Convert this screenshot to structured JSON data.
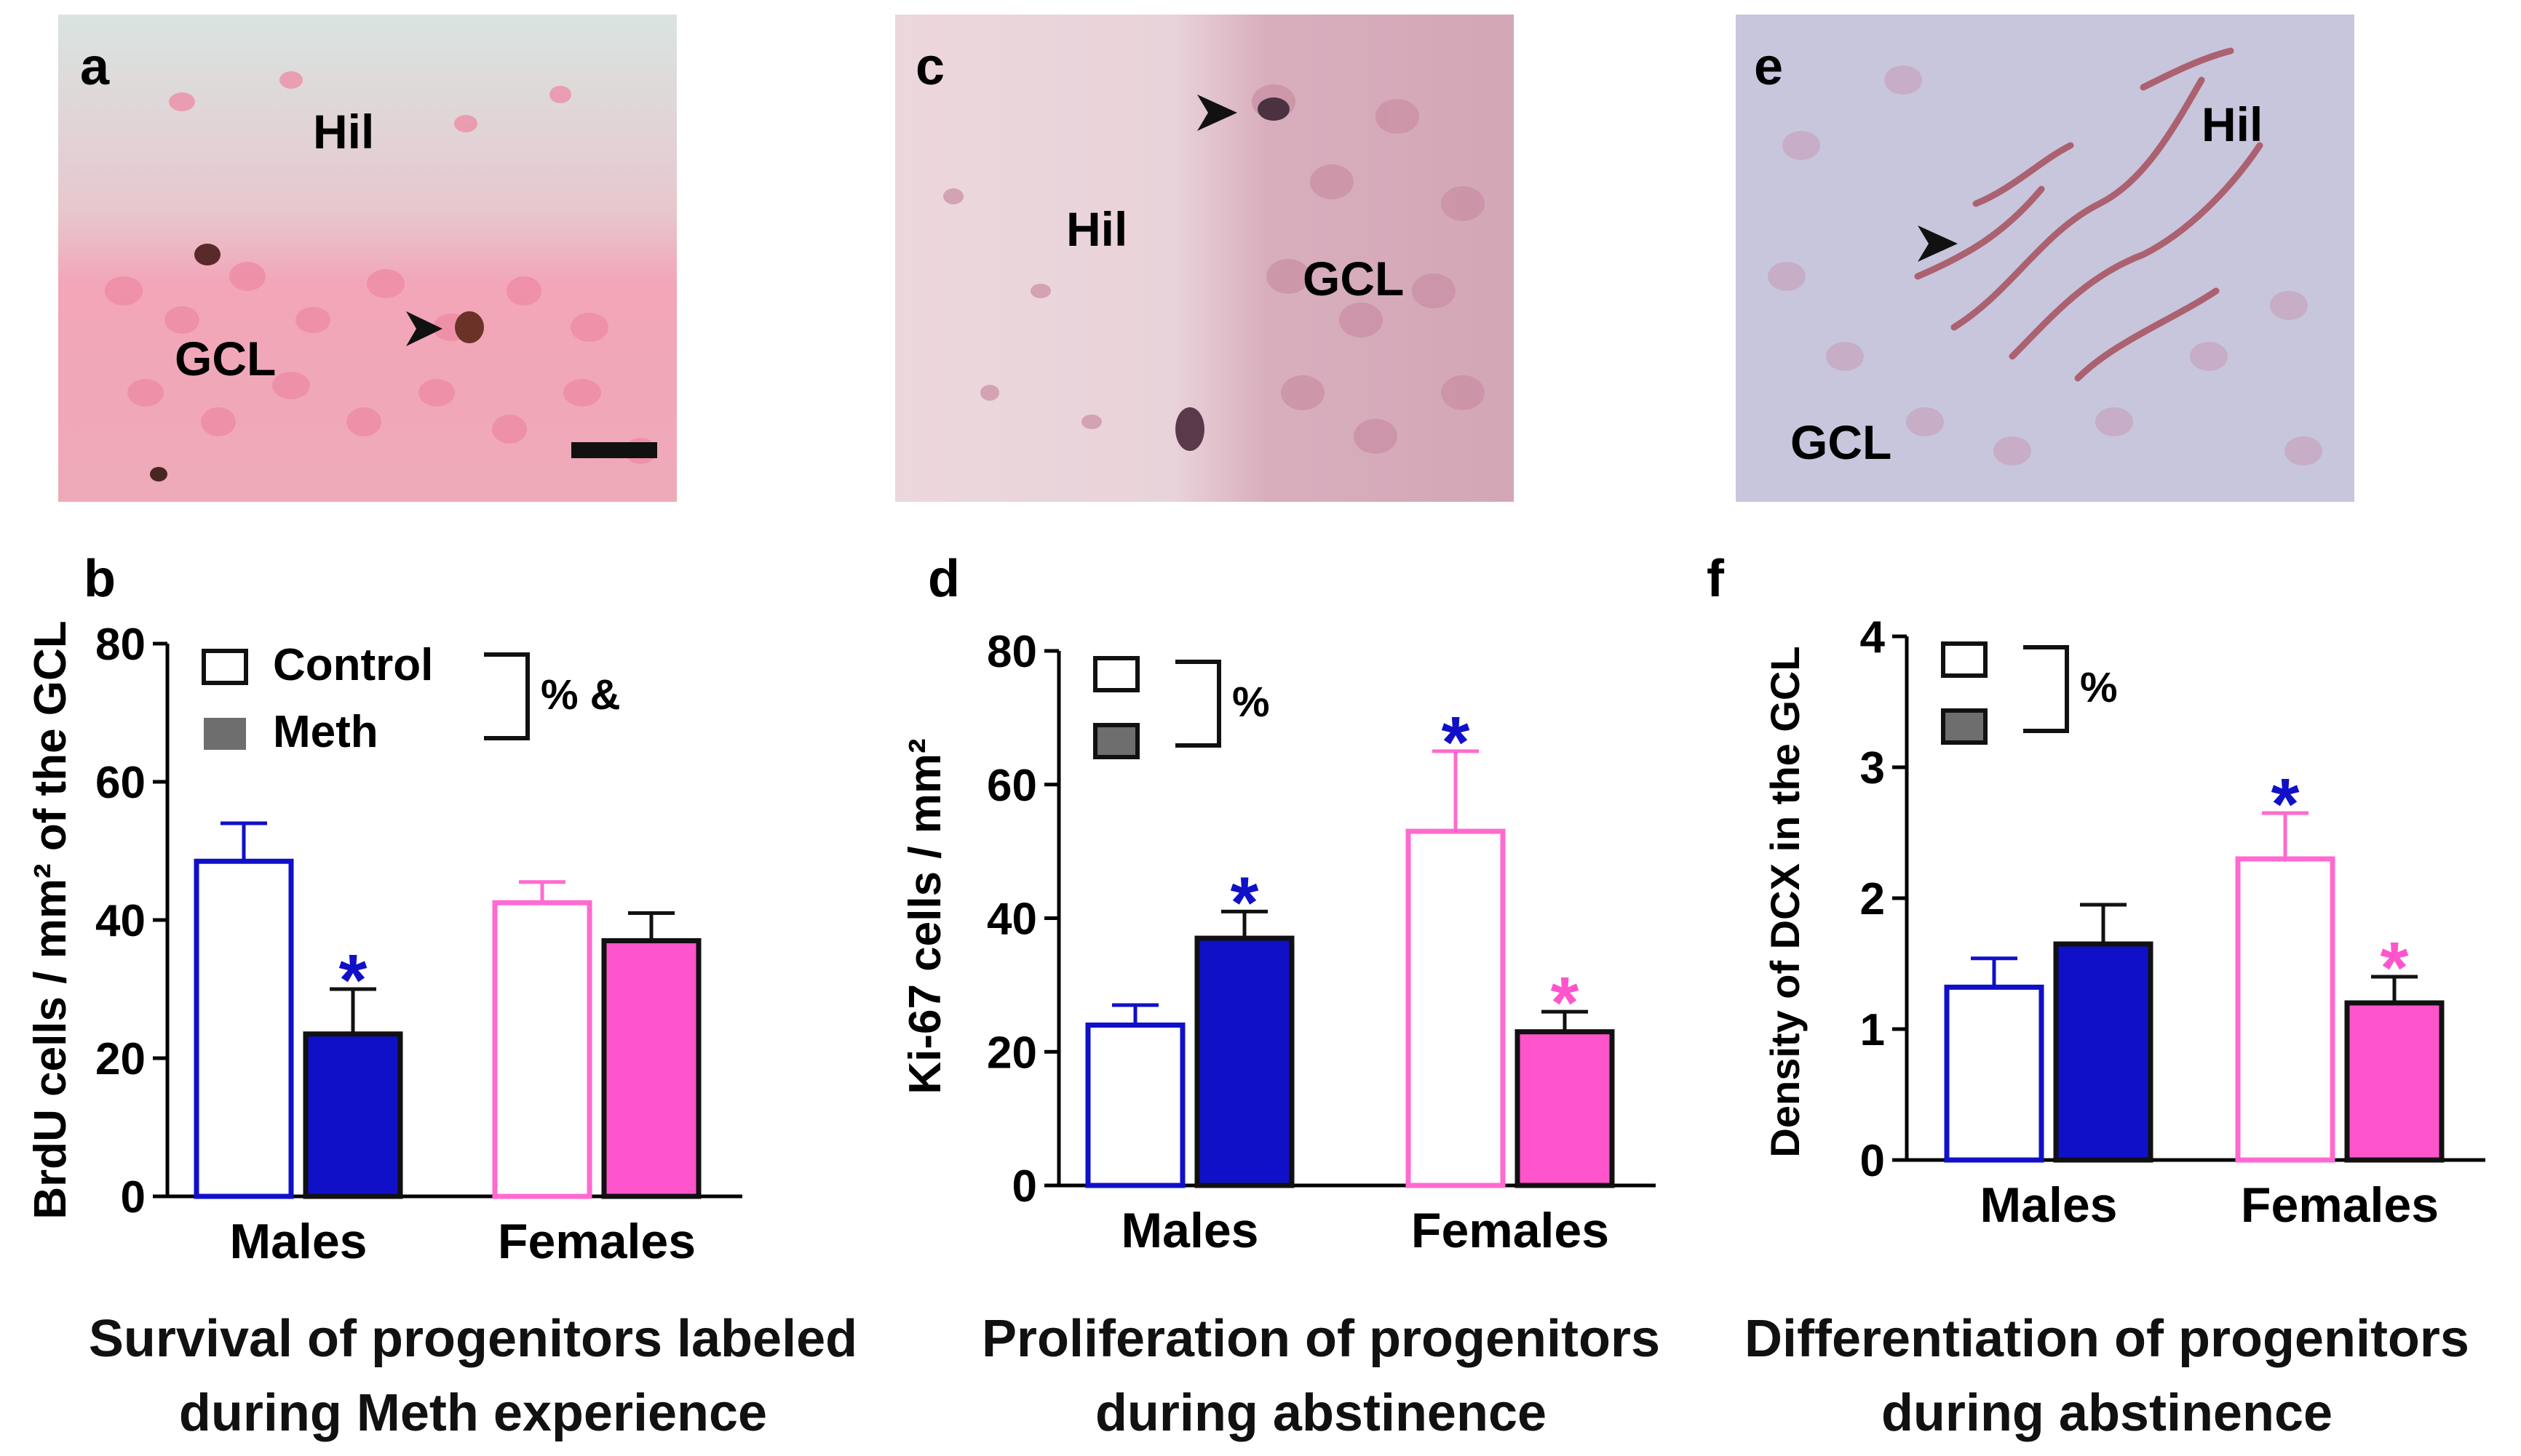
{
  "micrographs": [
    {
      "panel": "a",
      "labels": [
        "Hil",
        "GCL"
      ]
    },
    {
      "panel": "c",
      "labels": [
        "Hil",
        "GCL"
      ]
    },
    {
      "panel": "e",
      "labels": [
        "Hil",
        "GCL"
      ]
    }
  ],
  "colors": {
    "male": "#1010c8",
    "female": "#ff55cc",
    "female_outline": "#ff6ad0",
    "legend_fill": "#6e6e6e"
  },
  "chart_data": [
    {
      "panel": "b",
      "type": "bar",
      "ylabel": "BrdU cells / mm² of the GCL",
      "categories": [
        "Males",
        "Females"
      ],
      "series": [
        {
          "name": "Control",
          "values": [
            48.5,
            42.5
          ],
          "errors": [
            5.5,
            3
          ]
        },
        {
          "name": "Meth",
          "values": [
            23.5,
            37
          ],
          "errors": [
            6.5,
            4
          ]
        }
      ],
      "ylim": [
        0,
        80
      ],
      "yticks": [
        "0",
        "20",
        "40",
        "60",
        "80"
      ],
      "legend": {
        "entries": [
          "Control",
          "Meth"
        ],
        "stat": "% &"
      },
      "significance": [
        {
          "series": "Meth",
          "category": "Males",
          "mark": "*",
          "color": "#1010c8"
        }
      ],
      "caption": [
        "Survival of progenitors labeled",
        "during Meth experience"
      ]
    },
    {
      "panel": "d",
      "type": "bar",
      "ylabel": "Ki-67 cells / mm²",
      "categories": [
        "Males",
        "Females"
      ],
      "series": [
        {
          "name": "Control",
          "values": [
            24,
            53
          ],
          "errors": [
            3,
            12
          ]
        },
        {
          "name": "Meth",
          "values": [
            37,
            23
          ],
          "errors": [
            4,
            3
          ]
        }
      ],
      "ylim": [
        0,
        80
      ],
      "yticks": [
        "0",
        "20",
        "40",
        "60",
        "80"
      ],
      "legend": {
        "entries": [
          "",
          ""
        ],
        "stat": "%"
      },
      "significance": [
        {
          "series": "Meth",
          "category": "Males",
          "mark": "*",
          "color": "#1010c8"
        },
        {
          "series": "Control",
          "category": "Females",
          "mark": "*",
          "color": "#1010c8"
        },
        {
          "series": "Meth",
          "category": "Females",
          "mark": "*",
          "color": "#ff55cc"
        }
      ],
      "caption": [
        "Proliferation of progenitors",
        "during abstinence"
      ]
    },
    {
      "panel": "f",
      "type": "bar",
      "ylabel": "Density of DCX in the GCL",
      "categories": [
        "Males",
        "Females"
      ],
      "series": [
        {
          "name": "Control",
          "values": [
            1.32,
            2.3
          ],
          "errors": [
            0.22,
            0.35
          ]
        },
        {
          "name": "Meth",
          "values": [
            1.65,
            1.2
          ],
          "errors": [
            0.3,
            0.2
          ]
        }
      ],
      "ylim": [
        0,
        4
      ],
      "yticks": [
        "0",
        "1",
        "2",
        "3",
        "4"
      ],
      "legend": {
        "entries": [
          "",
          ""
        ],
        "stat": "%"
      },
      "significance": [
        {
          "series": "Control",
          "category": "Females",
          "mark": "*",
          "color": "#1010c8"
        },
        {
          "series": "Meth",
          "category": "Females",
          "mark": "*",
          "color": "#ff55cc"
        }
      ],
      "caption": [
        "Differentiation of progenitors",
        "during abstinence"
      ]
    }
  ]
}
